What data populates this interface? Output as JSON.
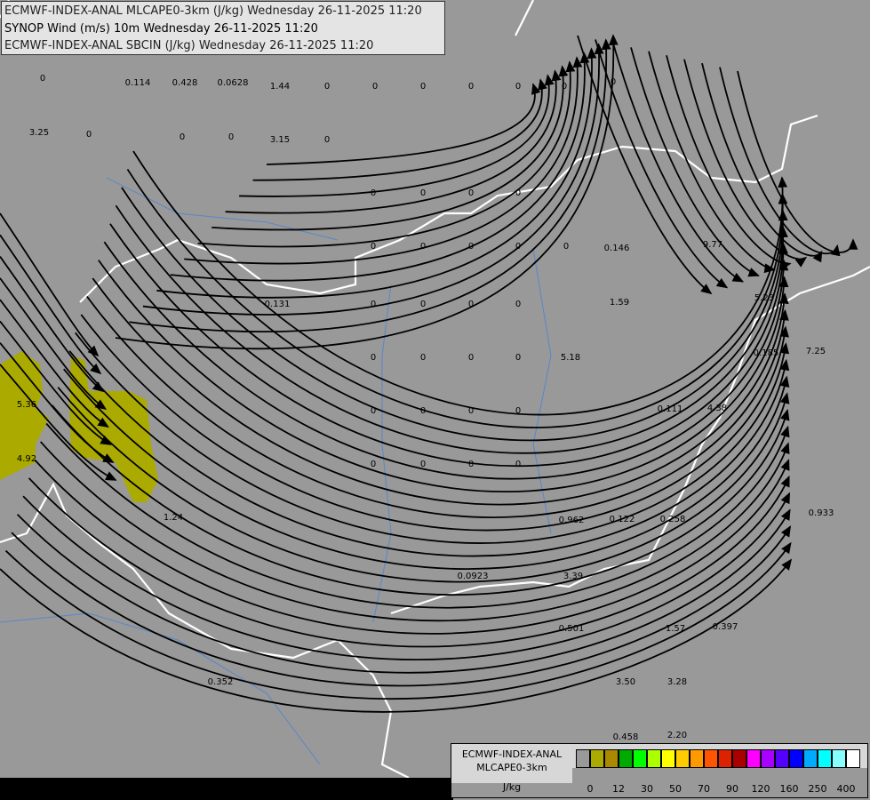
{
  "header": {
    "lines": [
      "ECMWF-INDEX-ANAL MLCAPE0-3km (J/kg) Wednesday 26-11-2025 11:20",
      "SYNOP Wind (m/s) 10m Wednesday 26-11-2025 11:20",
      "ECMWF-INDEX-ANAL SBCIN (J/kg) Wednesday 26-11-2025 11:20"
    ]
  },
  "legend": {
    "title1": "ECMWF-INDEX-ANAL",
    "title2": "MLCAPE0-3km",
    "unit": "J/kg",
    "colors": [
      "#999999",
      "#aaaa00",
      "#aa8800",
      "#00aa00",
      "#00ff00",
      "#aaff00",
      "#ffff00",
      "#ffcc00",
      "#ff9900",
      "#ff5500",
      "#dd2200",
      "#aa0000",
      "#ff00ff",
      "#aa00ff",
      "#5500ff",
      "#0000ff",
      "#00aaff",
      "#00ffff",
      "#88ffff",
      "#ffffff"
    ],
    "ticks": [
      "0",
      "12",
      "30",
      "50",
      "70",
      "90",
      "120",
      "160",
      "250",
      "400"
    ]
  },
  "colors": {
    "background": "#999999",
    "cape_fill": "#aaaa00",
    "borders": "#ffffff",
    "rivers": "#5588cc",
    "streamlines": "#000000"
  },
  "station_values": [
    "0.114",
    "0.428",
    "0.0628",
    "1.44",
    "3.25",
    "3.15",
    "0.131",
    "0.146",
    "9.77",
    "1.59",
    "5.23",
    "5.18",
    "0.185",
    "7.25",
    "0.111",
    "4.38",
    "5.36",
    "4.92",
    "1.24",
    "0.962",
    "0.122",
    "0.258",
    "0.933",
    "0.0923",
    "3.39",
    "0.501",
    "1.57",
    "0.397",
    "3.50",
    "3.28",
    "0.352",
    "0.458",
    "2.20",
    "0",
    "0",
    "0",
    "0",
    "0",
    "0",
    "0",
    "0",
    "0",
    "0",
    "0",
    "0",
    "0",
    "0",
    "0",
    "0",
    "0",
    "0",
    "0",
    "0",
    "0",
    "0",
    "0",
    "0",
    "0",
    "0",
    "0",
    "0",
    "0",
    "0",
    "0",
    "0",
    "0",
    "0",
    "0",
    "0",
    "0",
    "0",
    "0",
    "0"
  ]
}
